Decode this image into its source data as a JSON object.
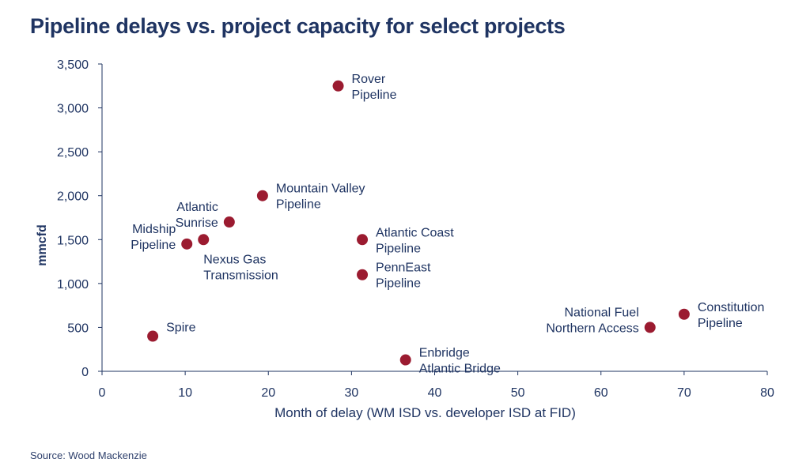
{
  "title": "Pipeline delays vs. project capacity for select projects",
  "source": "Source: Wood Mackenzie",
  "colors": {
    "marker": "#9b1b30",
    "text": "#1f3462",
    "axis": "#1f3462"
  },
  "chart_data": {
    "type": "scatter",
    "title": "Pipeline delays vs. project capacity for select projects",
    "xlabel": "Month of delay (WM ISD vs. developer ISD at FID)",
    "ylabel": "mmcfd",
    "xlim": [
      0,
      80
    ],
    "ylim": [
      0,
      3500
    ],
    "xticks": [
      0,
      10,
      20,
      30,
      40,
      50,
      60,
      70,
      80
    ],
    "yticks": [
      0,
      500,
      1000,
      1500,
      2000,
      2500,
      3000,
      3500
    ],
    "ytick_labels": [
      "0",
      "500",
      "1,000",
      "1,500",
      "2,000",
      "2,500",
      "3,000",
      "3,500"
    ],
    "grid": false,
    "points": [
      {
        "name": "Rover Pipeline",
        "label_lines": [
          "Rover",
          "Pipeline"
        ],
        "x": 28.4,
        "y": 3250,
        "label_pos": "right"
      },
      {
        "name": "Mountain Valley Pipeline",
        "label_lines": [
          "Mountain Valley",
          "Pipeline"
        ],
        "x": 19.3,
        "y": 2000,
        "label_pos": "right"
      },
      {
        "name": "Atlantic Sunrise",
        "label_lines": [
          "Atlantic",
          "Sunrise"
        ],
        "x": 15.3,
        "y": 1700,
        "label_pos": "left"
      },
      {
        "name": "Nexus Gas Transmission",
        "label_lines": [
          "Nexus Gas",
          "Transmission"
        ],
        "x": 12.2,
        "y": 1500,
        "label_pos": "below-right"
      },
      {
        "name": "Midship Pipeline",
        "label_lines": [
          "Midship",
          "Pipeline"
        ],
        "x": 10.2,
        "y": 1450,
        "label_pos": "left"
      },
      {
        "name": "Atlantic Coast Pipeline",
        "label_lines": [
          "Atlantic Coast",
          "Pipeline"
        ],
        "x": 31.3,
        "y": 1500,
        "label_pos": "right"
      },
      {
        "name": "PennEast Pipeline",
        "label_lines": [
          "PennEast",
          "Pipeline"
        ],
        "x": 31.3,
        "y": 1100,
        "label_pos": "right"
      },
      {
        "name": "Spire",
        "label_lines": [
          "Spire"
        ],
        "x": 6.1,
        "y": 400,
        "label_pos": "right"
      },
      {
        "name": "Enbridge Atlantic Bridge",
        "label_lines": [
          "Enbridge",
          "Atlantic Bridge"
        ],
        "x": 36.5,
        "y": 130,
        "label_pos": "right"
      },
      {
        "name": "National Fuel Northern Access",
        "label_lines": [
          "National Fuel",
          "Northern Access"
        ],
        "x": 65.9,
        "y": 500,
        "label_pos": "left"
      },
      {
        "name": "Constitution Pipeline",
        "label_lines": [
          "Constitution",
          "Pipeline"
        ],
        "x": 70.0,
        "y": 650,
        "label_pos": "right"
      }
    ]
  }
}
